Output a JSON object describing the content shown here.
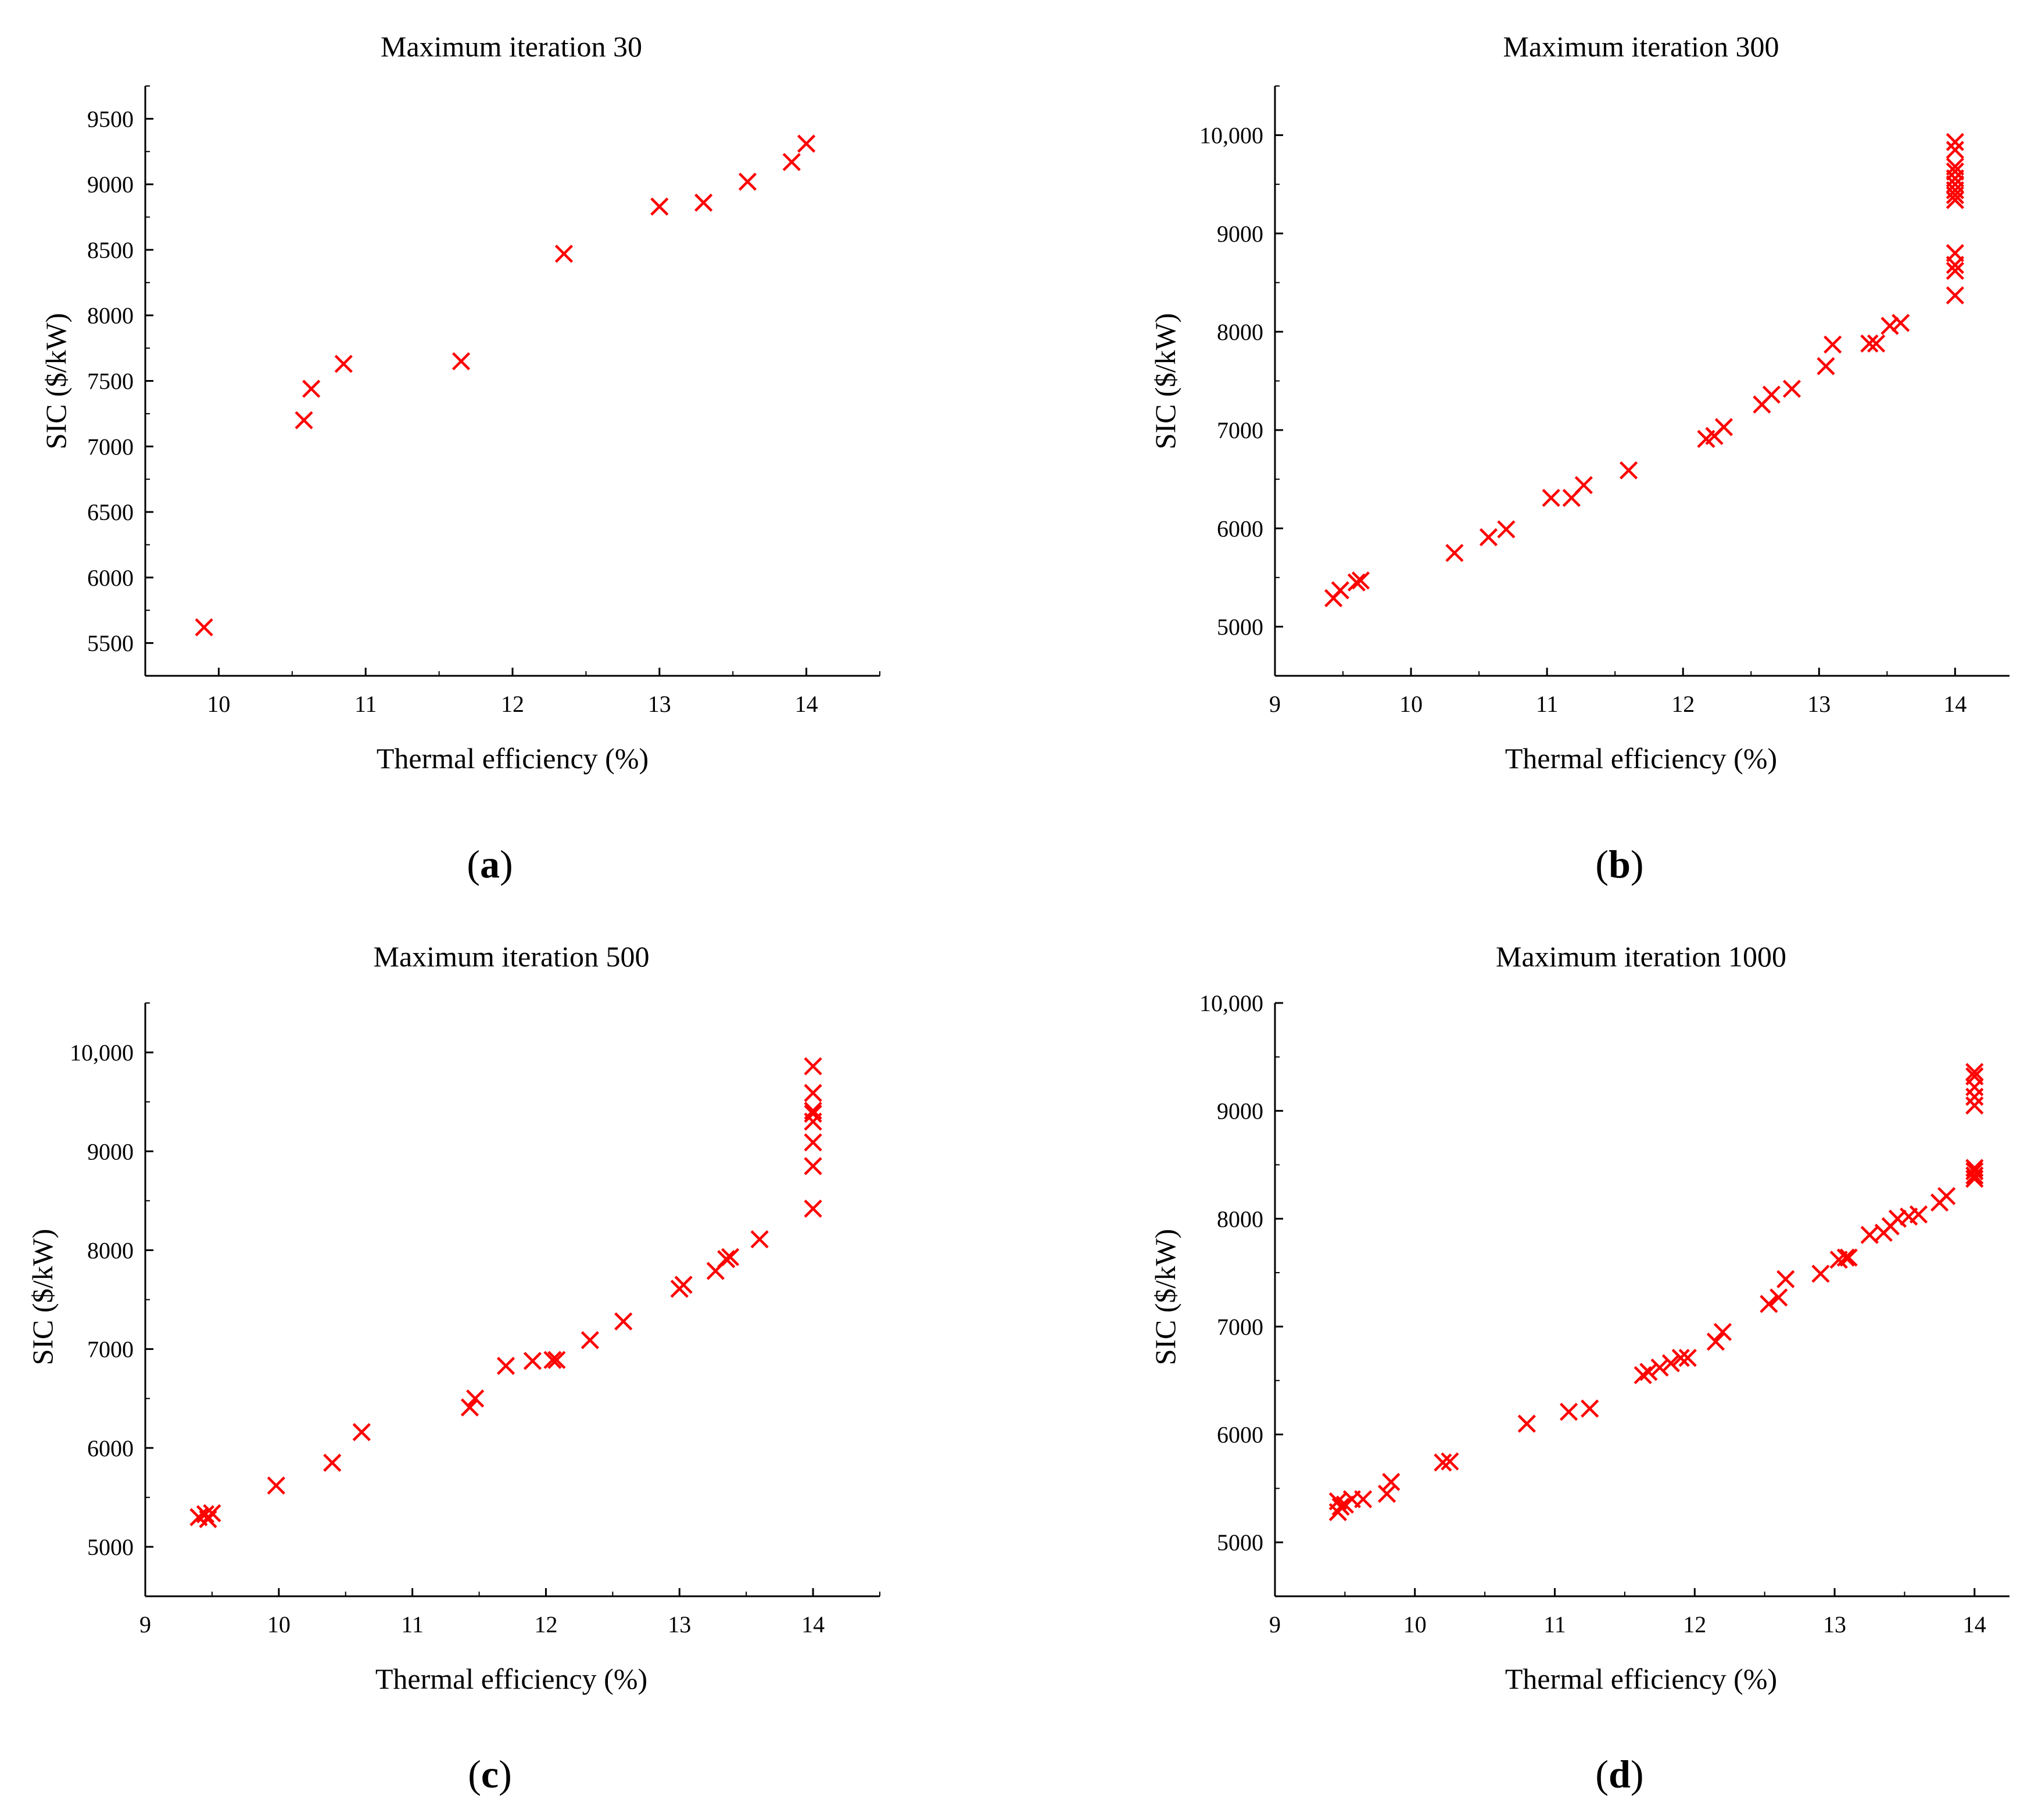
{
  "figure": {
    "panels": [
      "a",
      "b",
      "c",
      "d"
    ]
  },
  "colors": {
    "marker": "#ff0000",
    "axis": "#000000"
  },
  "chart_data": [
    {
      "id": "a",
      "label": "a",
      "type": "scatter",
      "marker": "x",
      "title": "Maximum iteration 30",
      "xlabel": "Thermal efficiency (%)",
      "ylabel": "SIC ($/kW)",
      "xlim": [
        9.5,
        14.5
      ],
      "ylim": [
        5250,
        9750
      ],
      "xticks": [
        10,
        11,
        12,
        13,
        14
      ],
      "xtick_labels": [
        "10",
        "11",
        "12",
        "13",
        "14"
      ],
      "yticks": [
        5500,
        6000,
        6500,
        7000,
        7500,
        8000,
        8500,
        9000,
        9500
      ],
      "ytick_labels": [
        "5500",
        "6000",
        "6500",
        "7000",
        "7500",
        "8000",
        "8500",
        "9000",
        "9500"
      ],
      "x": [
        9.9,
        10.58,
        10.63,
        10.85,
        11.65,
        12.35,
        13.0,
        13.3,
        13.6,
        13.9,
        14.0
      ],
      "y": [
        5620,
        7200,
        7440,
        7630,
        7650,
        8470,
        8830,
        8860,
        9020,
        9170,
        9310
      ]
    },
    {
      "id": "b",
      "label": "b",
      "type": "scatter",
      "marker": "x",
      "title": "Maximum iteration 300",
      "xlabel": "Thermal efficiency (%)",
      "ylabel": "SIC ($/kW)",
      "xlim": [
        9.0,
        14.4
      ],
      "ylim": [
        4500,
        10500
      ],
      "xticks": [
        9,
        10,
        11,
        12,
        13,
        14
      ],
      "xtick_labels": [
        "9",
        "10",
        "11",
        "12",
        "13",
        "14"
      ],
      "yticks": [
        5000,
        6000,
        7000,
        8000,
        9000,
        10000
      ],
      "ytick_labels": [
        "5000",
        "6000",
        "7000",
        "8000",
        "9000",
        "10,000"
      ],
      "x": [
        9.43,
        9.48,
        9.6,
        9.63,
        10.32,
        10.57,
        10.7,
        11.03,
        11.18,
        11.27,
        11.6,
        12.17,
        12.23,
        12.3,
        12.58,
        12.65,
        12.8,
        13.05,
        13.1,
        13.37,
        13.42,
        13.52,
        13.6,
        14.0,
        14.0,
        14.0,
        14.0,
        14.0,
        14.0,
        14.0,
        14.0,
        14.0,
        14.0,
        14.0,
        14.0,
        14.0
      ],
      "y": [
        5290,
        5370,
        5450,
        5470,
        5750,
        5910,
        5990,
        6310,
        6310,
        6440,
        6590,
        6910,
        6940,
        7030,
        7260,
        7360,
        7420,
        7650,
        7870,
        7880,
        7880,
        8060,
        8090,
        8370,
        8620,
        8680,
        8800,
        9340,
        9390,
        9440,
        9500,
        9560,
        9630,
        9680,
        9850,
        9930
      ]
    },
    {
      "id": "c",
      "label": "c",
      "type": "scatter",
      "marker": "x",
      "title": "Maximum iteration 500",
      "xlabel": "Thermal efficiency (%)",
      "ylabel": "SIC ($/kW)",
      "xlim": [
        9.0,
        14.5
      ],
      "ylim": [
        4500,
        10500
      ],
      "xticks": [
        9,
        10,
        11,
        12,
        13,
        14
      ],
      "xtick_labels": [
        "9",
        "10",
        "11",
        "12",
        "13",
        "14"
      ],
      "yticks": [
        5000,
        6000,
        7000,
        8000,
        9000,
        10000
      ],
      "ytick_labels": [
        "5000",
        "6000",
        "7000",
        "8000",
        "9000",
        "10,000"
      ],
      "x": [
        9.4,
        9.45,
        9.47,
        9.5,
        9.98,
        10.4,
        10.62,
        11.43,
        11.47,
        11.7,
        11.9,
        12.05,
        12.08,
        12.33,
        12.58,
        13.0,
        13.03,
        13.27,
        13.35,
        13.38,
        13.6,
        14.0,
        14.0,
        14.0,
        14.0,
        14.0,
        14.0,
        14.0,
        14.0
      ],
      "y": [
        5300,
        5330,
        5280,
        5340,
        5620,
        5850,
        6160,
        6410,
        6500,
        6830,
        6880,
        6890,
        6890,
        7090,
        7280,
        7610,
        7650,
        7790,
        7910,
        7930,
        8110,
        8420,
        8850,
        9090,
        9300,
        9380,
        9410,
        9590,
        9860
      ]
    },
    {
      "id": "d",
      "label": "d",
      "type": "scatter",
      "marker": "x",
      "title": "Maximum iteration 1000",
      "xlabel": "Thermal efficiency (%)",
      "ylabel": "SIC ($/kW)",
      "xlim": [
        9.0,
        14.25
      ],
      "ylim": [
        4500,
        10000
      ],
      "xticks": [
        9,
        10,
        11,
        12,
        13,
        14
      ],
      "xtick_labels": [
        "9",
        "10",
        "11",
        "12",
        "13",
        "14"
      ],
      "yticks": [
        5000,
        6000,
        7000,
        8000,
        9000,
        10000
      ],
      "ytick_labels": [
        "5000",
        "6000",
        "7000",
        "8000",
        "9000",
        "10,000"
      ],
      "x": [
        9.45,
        9.45,
        9.47,
        9.5,
        9.55,
        9.63,
        9.8,
        9.83,
        10.2,
        10.25,
        10.8,
        11.1,
        11.25,
        11.63,
        11.67,
        11.75,
        11.83,
        11.9,
        11.95,
        12.15,
        12.2,
        12.53,
        12.6,
        12.65,
        12.9,
        13.03,
        13.08,
        13.1,
        13.25,
        13.35,
        13.4,
        13.45,
        13.53,
        13.6,
        13.75,
        13.8,
        14.0,
        14.0,
        14.0,
        14.0,
        14.0,
        14.0,
        14.0,
        14.0,
        14.0
      ],
      "y": [
        5280,
        5380,
        5330,
        5350,
        5400,
        5400,
        5450,
        5560,
        5740,
        5750,
        6100,
        6210,
        6240,
        6550,
        6580,
        6620,
        6660,
        6710,
        6710,
        6860,
        6950,
        7210,
        7270,
        7440,
        7490,
        7620,
        7640,
        7640,
        7850,
        7870,
        7930,
        8000,
        8020,
        8040,
        8150,
        8210,
        8370,
        8400,
        8440,
        8470,
        9050,
        9130,
        9220,
        9320,
        9360
      ]
    }
  ]
}
